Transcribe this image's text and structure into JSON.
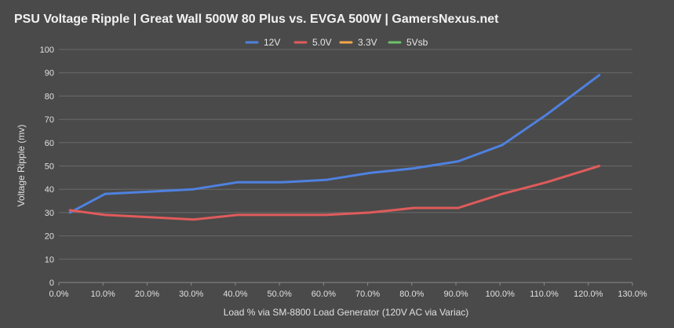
{
  "chart_data": {
    "type": "line",
    "title": "PSU Voltage Ripple | Great Wall 500W 80 Plus vs. EVGA 500W | GamersNexus.net",
    "xlabel": "Load % via SM-8800 Load Generator (120V AC via Variac)",
    "ylabel": "Voltage Ripple (mv)",
    "xlim": [
      0,
      130
    ],
    "ylim": [
      0,
      100
    ],
    "x_ticks": [
      0,
      10,
      20,
      30,
      40,
      50,
      60,
      70,
      80,
      90,
      100,
      110,
      120,
      130
    ],
    "x_tick_labels": [
      "0.0%",
      "10.0%",
      "20.0%",
      "30.0%",
      "40.0%",
      "50.0%",
      "60.0%",
      "70.0%",
      "80.0%",
      "90.0%",
      "100.0%",
      "110.0%",
      "120.0%",
      "130.0%"
    ],
    "y_ticks": [
      0,
      10,
      20,
      30,
      40,
      50,
      60,
      70,
      80,
      90,
      100
    ],
    "y_tick_labels": [
      "0",
      "10",
      "20",
      "30",
      "40",
      "50",
      "60",
      "70",
      "80",
      "90",
      "100"
    ],
    "grid": true,
    "legend_position": "top-center",
    "series": [
      {
        "name": "12V",
        "color": "#4f81e0",
        "points": [
          [
            2.5,
            30
          ],
          [
            10.5,
            38
          ],
          [
            20.5,
            39
          ],
          [
            30.5,
            40
          ],
          [
            40.5,
            43
          ],
          [
            50.5,
            43
          ],
          [
            60.5,
            44
          ],
          [
            70.5,
            47
          ],
          [
            80.5,
            49
          ],
          [
            90.5,
            52
          ],
          [
            100.5,
            59
          ],
          [
            110.5,
            72
          ],
          [
            122.5,
            89
          ]
        ]
      },
      {
        "name": "5.0V",
        "color": "#e05b5b",
        "points": [
          [
            2.5,
            31
          ],
          [
            10.5,
            29
          ],
          [
            20.5,
            28
          ],
          [
            30.5,
            27
          ],
          [
            40.5,
            29
          ],
          [
            50.5,
            29
          ],
          [
            60.5,
            29
          ],
          [
            70.5,
            30
          ],
          [
            80.5,
            32
          ],
          [
            90.5,
            32
          ],
          [
            100.5,
            38
          ],
          [
            110.5,
            43
          ],
          [
            122.5,
            50
          ]
        ]
      },
      {
        "name": "3.3V",
        "color": "#f4a64a",
        "points": []
      },
      {
        "name": "5Vsb",
        "color": "#6bc26b",
        "points": []
      }
    ]
  }
}
